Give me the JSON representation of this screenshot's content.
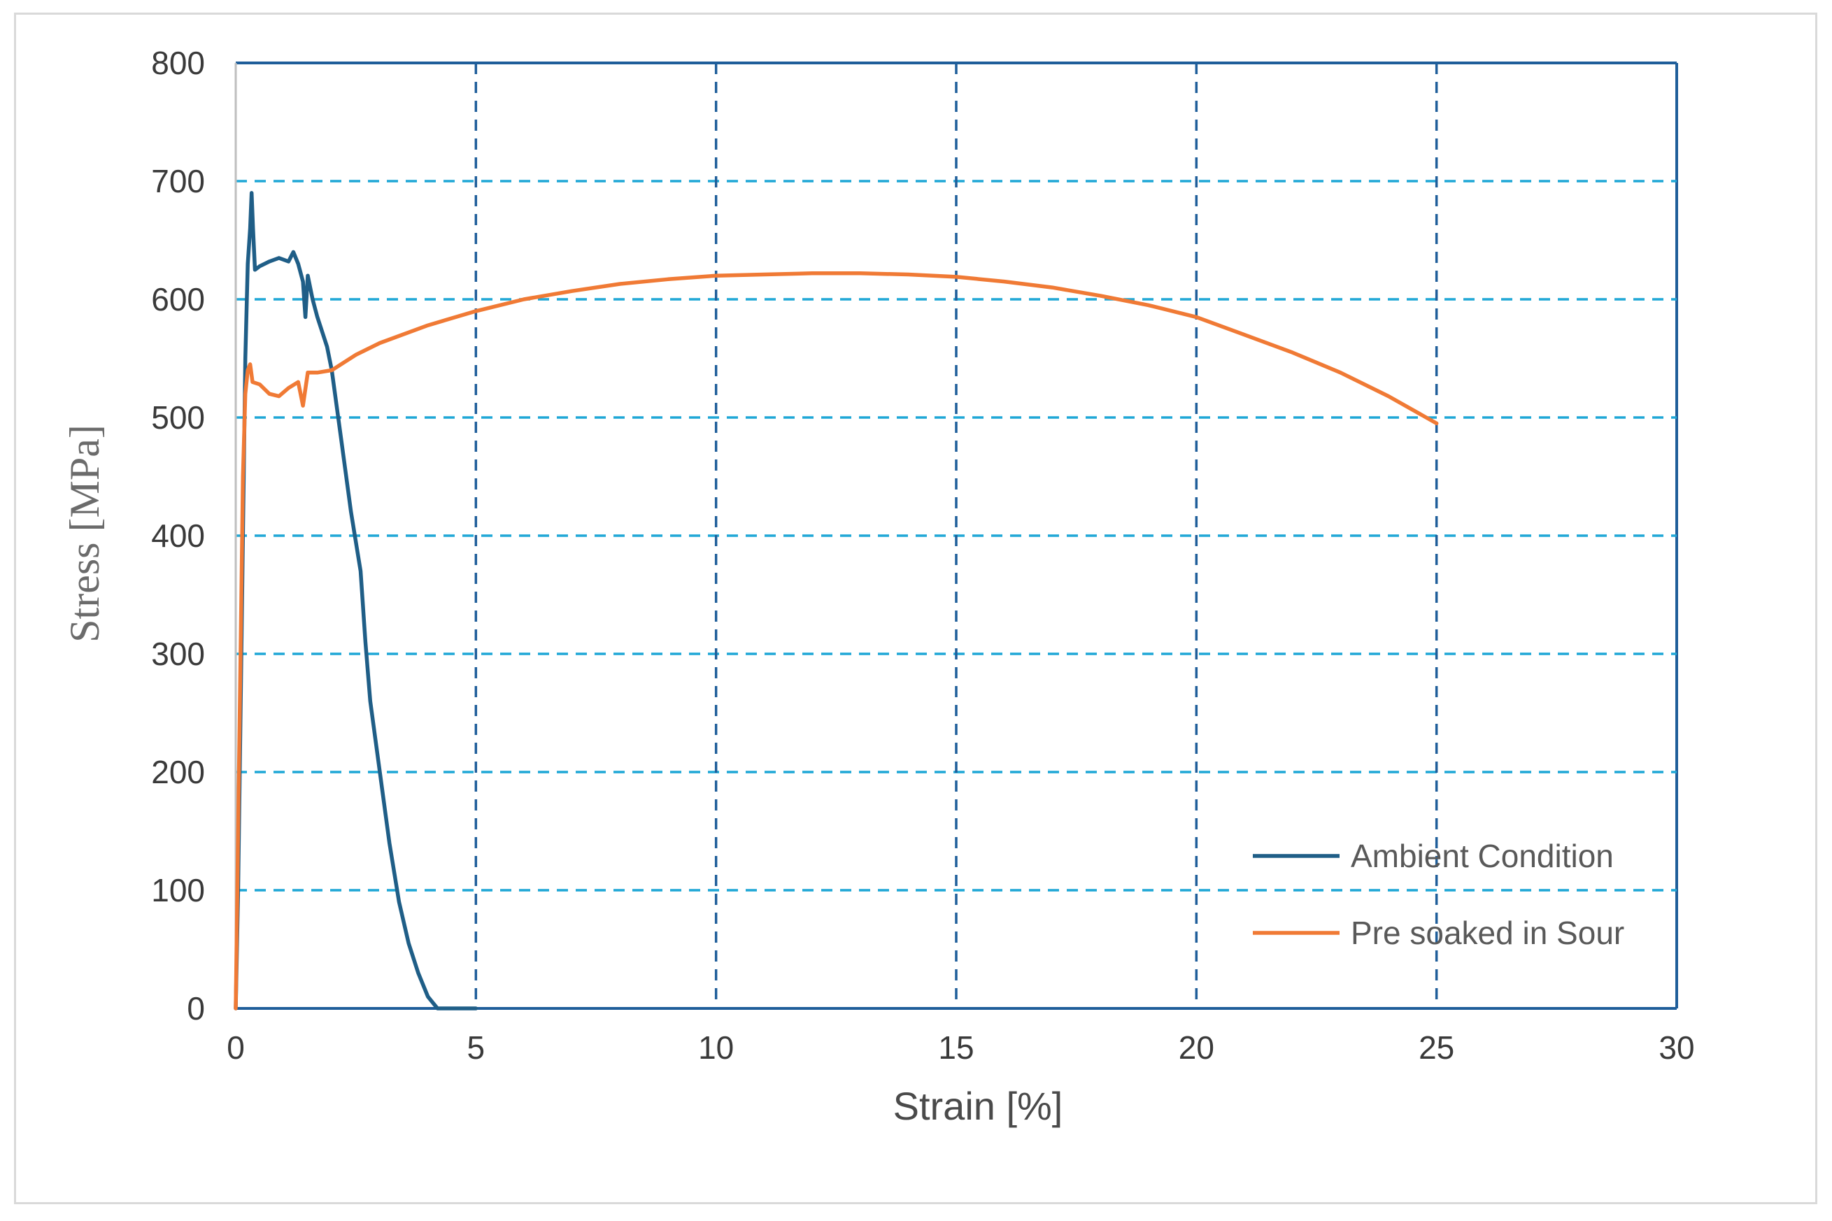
{
  "chart_data": {
    "type": "line",
    "xlabel": "Strain [%]",
    "ylabel": "Stress [MPa]",
    "xlim": [
      0,
      30
    ],
    "ylim": [
      0,
      800
    ],
    "xticks": [
      0,
      5,
      10,
      15,
      20,
      25,
      30
    ],
    "yticks": [
      0,
      100,
      200,
      300,
      400,
      500,
      600,
      700,
      800
    ],
    "grid": true,
    "legend_position": "bottom-right",
    "series": [
      {
        "name": "Ambient Condition",
        "color": "#1f5e87",
        "x": [
          0.0,
          0.05,
          0.1,
          0.15,
          0.2,
          0.25,
          0.3,
          0.33,
          0.36,
          0.4,
          0.5,
          0.7,
          0.9,
          1.1,
          1.2,
          1.3,
          1.4,
          1.45,
          1.5,
          1.6,
          1.7,
          1.9,
          2.0,
          2.2,
          2.4,
          2.6,
          2.7,
          2.8,
          3.0,
          3.2,
          3.4,
          3.6,
          3.8,
          4.0,
          4.2,
          4.5,
          5.0
        ],
        "y": [
          0,
          100,
          250,
          400,
          550,
          630,
          660,
          690,
          660,
          625,
          628,
          632,
          635,
          632,
          640,
          630,
          615,
          585,
          620,
          600,
          585,
          560,
          540,
          480,
          420,
          370,
          310,
          260,
          200,
          140,
          90,
          55,
          30,
          10,
          0,
          0,
          0
        ]
      },
      {
        "name": "Pre soaked in Sour",
        "color": "#f07a35",
        "x": [
          0.0,
          0.05,
          0.1,
          0.15,
          0.2,
          0.25,
          0.3,
          0.35,
          0.5,
          0.7,
          0.9,
          1.1,
          1.3,
          1.4,
          1.5,
          1.7,
          2.0,
          2.5,
          3.0,
          4.0,
          5.0,
          6.0,
          7.0,
          8.0,
          9.0,
          10.0,
          11.0,
          12.0,
          13.0,
          14.0,
          15.0,
          16.0,
          17.0,
          18.0,
          19.0,
          20.0,
          21.0,
          22.0,
          23.0,
          24.0,
          25.0
        ],
        "y": [
          0,
          150,
          300,
          450,
          520,
          540,
          545,
          530,
          528,
          520,
          518,
          525,
          530,
          510,
          538,
          538,
          540,
          553,
          563,
          578,
          590,
          600,
          607,
          613,
          617,
          620,
          621,
          622,
          622,
          621,
          619,
          615,
          610,
          603,
          595,
          585,
          570,
          555,
          538,
          518,
          495
        ]
      }
    ]
  }
}
